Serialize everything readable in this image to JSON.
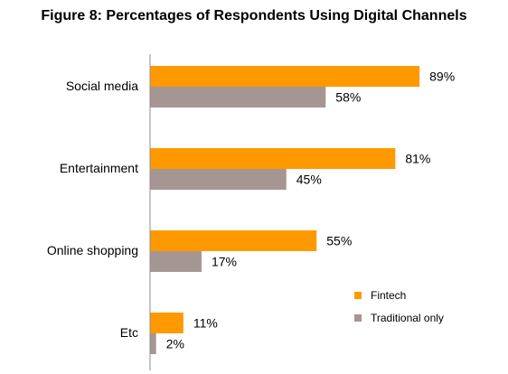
{
  "chart_data": {
    "type": "bar",
    "orientation": "horizontal",
    "title": "Figure 8: Percentages of Respondents Using Digital Channels",
    "categories": [
      "Social media",
      "Entertainment",
      "Online shopping",
      "Etc"
    ],
    "series": [
      {
        "name": "Fintech",
        "values": [
          89,
          81,
          55,
          11
        ],
        "labels": [
          "89%",
          "81%",
          "55%",
          "11%"
        ],
        "color": "#FF9900"
      },
      {
        "name": "Traditional only",
        "values": [
          58,
          45,
          17,
          2
        ],
        "labels": [
          "58%",
          "45%",
          "17%",
          "2%"
        ],
        "color": "#A69693"
      }
    ],
    "xlim": [
      0,
      100
    ],
    "grid": false,
    "legend_position": "bottom-right"
  }
}
